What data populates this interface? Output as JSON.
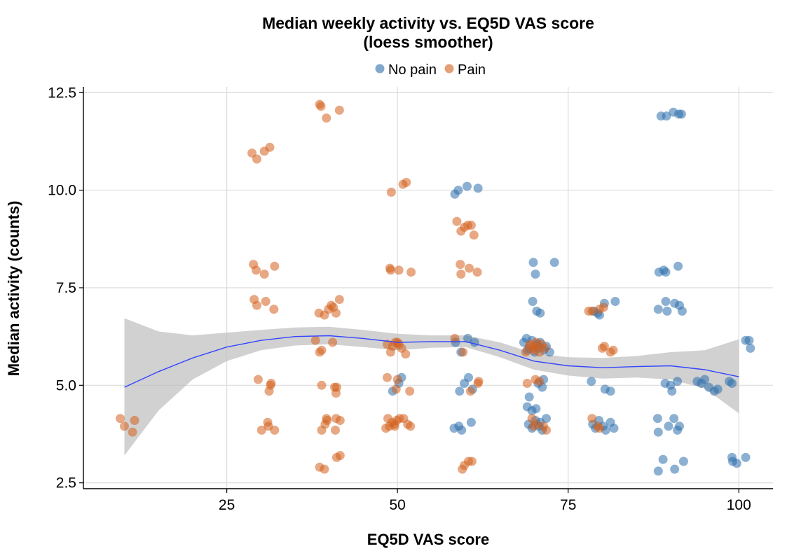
{
  "chart_data": {
    "type": "scatter",
    "title": "Median weekly activity vs. EQ5D VAS score",
    "subtitle": "(loess smoother)",
    "xlabel": "EQ5D VAS score",
    "ylabel": "Median activity (counts)",
    "xlim": [
      4,
      105
    ],
    "ylim": [
      2.35,
      12.65
    ],
    "x_ticks": [
      25,
      50,
      75,
      100
    ],
    "x_tick_labels": [
      "25",
      "50",
      "75",
      "100"
    ],
    "y_ticks": [
      2.5,
      5.0,
      7.5,
      10.0,
      12.5
    ],
    "y_tick_labels": [
      "2.5",
      "5.0",
      "7.5",
      "10.0",
      "12.5"
    ],
    "grid": true,
    "legend_position": "top",
    "colors": {
      "no_pain": "#2e6fac",
      "pain": "#d4601e",
      "smoother": "#3344ff",
      "band": "#bfbfbf"
    },
    "series": [
      {
        "name": "No pain",
        "points": [
          [
            58.4,
            9.9
          ],
          [
            58.9,
            10.0
          ],
          [
            60.2,
            10.1
          ],
          [
            61.8,
            10.05
          ],
          [
            58.5,
            6.1
          ],
          [
            59.3,
            5.85
          ],
          [
            60.3,
            6.2
          ],
          [
            61.3,
            6.1
          ],
          [
            59.8,
            5.05
          ],
          [
            60.4,
            5.2
          ],
          [
            59.1,
            4.85
          ],
          [
            61.0,
            4.9
          ],
          [
            58.3,
            3.9
          ],
          [
            59.0,
            3.95
          ],
          [
            59.4,
            3.85
          ],
          [
            60.8,
            4.05
          ],
          [
            49.3,
            4.85
          ],
          [
            50.2,
            5.05
          ],
          [
            50.6,
            5.2
          ],
          [
            69.9,
            8.15
          ],
          [
            70.2,
            7.85
          ],
          [
            73.0,
            8.15
          ],
          [
            69.8,
            7.15
          ],
          [
            70.4,
            6.9
          ],
          [
            70.9,
            6.85
          ],
          [
            68.5,
            6.1
          ],
          [
            68.9,
            6.2
          ],
          [
            69.3,
            5.95
          ],
          [
            69.7,
            6.15
          ],
          [
            70.1,
            5.85
          ],
          [
            70.5,
            6.05
          ],
          [
            70.9,
            6.1
          ],
          [
            71.4,
            5.9
          ],
          [
            71.8,
            6.0
          ],
          [
            72.3,
            5.85
          ],
          [
            69.0,
            5.9
          ],
          [
            70.6,
            5.95
          ],
          [
            70.6,
            5.05
          ],
          [
            71.2,
            4.95
          ],
          [
            71.4,
            5.15
          ],
          [
            69.3,
            4.7
          ],
          [
            69.0,
            4.45
          ],
          [
            69.7,
            4.35
          ],
          [
            70.3,
            4.4
          ],
          [
            69.2,
            4.0
          ],
          [
            69.7,
            3.9
          ],
          [
            70.2,
            4.1
          ],
          [
            70.7,
            3.95
          ],
          [
            71.2,
            3.85
          ],
          [
            71.8,
            4.15
          ],
          [
            70.9,
            4.05
          ],
          [
            78.6,
            4.0
          ],
          [
            79.0,
            3.9
          ],
          [
            79.5,
            4.1
          ],
          [
            80.1,
            3.95
          ],
          [
            80.5,
            3.85
          ],
          [
            81.2,
            4.05
          ],
          [
            81.7,
            3.9
          ],
          [
            78.4,
            5.1
          ],
          [
            80.4,
            4.9
          ],
          [
            81.2,
            4.85
          ],
          [
            78.8,
            6.9
          ],
          [
            79.3,
            6.85
          ],
          [
            79.6,
            6.8
          ],
          [
            80.3,
            7.1
          ],
          [
            81.9,
            7.15
          ],
          [
            88.6,
            11.9
          ],
          [
            89.4,
            11.9
          ],
          [
            90.4,
            12.0
          ],
          [
            91.2,
            11.95
          ],
          [
            91.6,
            11.95
          ],
          [
            88.3,
            7.9
          ],
          [
            89.0,
            7.95
          ],
          [
            89.3,
            7.9
          ],
          [
            91.1,
            8.05
          ],
          [
            88.2,
            6.95
          ],
          [
            89.3,
            7.15
          ],
          [
            89.5,
            6.9
          ],
          [
            90.6,
            7.1
          ],
          [
            91.3,
            7.05
          ],
          [
            91.7,
            6.9
          ],
          [
            89.2,
            5.05
          ],
          [
            90.0,
            5.0
          ],
          [
            90.2,
            4.85
          ],
          [
            91.0,
            5.1
          ],
          [
            93.9,
            5.1
          ],
          [
            94.5,
            5.05
          ],
          [
            95.0,
            5.15
          ],
          [
            95.6,
            4.95
          ],
          [
            96.4,
            4.85
          ],
          [
            96.9,
            4.9
          ],
          [
            98.6,
            5.1
          ],
          [
            99.0,
            5.05
          ],
          [
            88.1,
            4.15
          ],
          [
            88.2,
            3.8
          ],
          [
            89.7,
            3.95
          ],
          [
            90.5,
            4.15
          ],
          [
            91.0,
            3.85
          ],
          [
            91.3,
            3.95
          ],
          [
            88.2,
            2.8
          ],
          [
            88.9,
            3.1
          ],
          [
            90.6,
            2.85
          ],
          [
            91.9,
            3.05
          ],
          [
            99.0,
            3.15
          ],
          [
            99.1,
            3.05
          ],
          [
            99.7,
            3.0
          ],
          [
            101.0,
            3.15
          ],
          [
            101.0,
            6.15
          ],
          [
            101.5,
            6.15
          ],
          [
            101.7,
            5.95
          ]
        ]
      },
      {
        "name": "Pain",
        "points": [
          [
            9.4,
            4.15
          ],
          [
            10.0,
            3.95
          ],
          [
            11.2,
            3.8
          ],
          [
            11.5,
            4.1
          ],
          [
            28.7,
            10.95
          ],
          [
            29.4,
            10.8
          ],
          [
            30.5,
            11.0
          ],
          [
            31.3,
            11.1
          ],
          [
            28.9,
            8.1
          ],
          [
            29.3,
            7.95
          ],
          [
            30.5,
            7.85
          ],
          [
            32.0,
            8.05
          ],
          [
            29.0,
            7.2
          ],
          [
            29.4,
            7.05
          ],
          [
            30.7,
            7.15
          ],
          [
            31.9,
            6.95
          ],
          [
            29.6,
            5.15
          ],
          [
            31.2,
            4.85
          ],
          [
            31.4,
            5.0
          ],
          [
            31.5,
            5.05
          ],
          [
            30.1,
            3.85
          ],
          [
            31.0,
            4.05
          ],
          [
            31.1,
            3.95
          ],
          [
            32.0,
            3.85
          ],
          [
            38.6,
            12.2
          ],
          [
            38.8,
            12.15
          ],
          [
            39.6,
            11.85
          ],
          [
            41.5,
            12.05
          ],
          [
            38.0,
            6.15
          ],
          [
            38.6,
            5.85
          ],
          [
            38.9,
            5.9
          ],
          [
            40.5,
            6.1
          ],
          [
            38.5,
            6.85
          ],
          [
            39.3,
            6.8
          ],
          [
            39.9,
            6.95
          ],
          [
            40.3,
            7.05
          ],
          [
            41.0,
            6.85
          ],
          [
            41.5,
            7.2
          ],
          [
            40.6,
            7.0
          ],
          [
            38.9,
            5.0
          ],
          [
            40.8,
            4.95
          ],
          [
            41.0,
            4.8
          ],
          [
            41.1,
            4.95
          ],
          [
            38.9,
            3.85
          ],
          [
            39.4,
            4.0
          ],
          [
            39.6,
            4.15
          ],
          [
            39.7,
            4.1
          ],
          [
            40.9,
            3.85
          ],
          [
            41.0,
            4.15
          ],
          [
            41.6,
            4.1
          ],
          [
            38.6,
            2.9
          ],
          [
            39.3,
            2.85
          ],
          [
            41.1,
            3.15
          ],
          [
            41.6,
            3.2
          ],
          [
            49.1,
            9.95
          ],
          [
            50.8,
            10.15
          ],
          [
            51.3,
            10.2
          ],
          [
            48.9,
            8.0
          ],
          [
            49.0,
            7.95
          ],
          [
            50.2,
            7.95
          ],
          [
            52.0,
            7.9
          ],
          [
            48.5,
            6.05
          ],
          [
            49.0,
            5.85
          ],
          [
            49.7,
            6.1
          ],
          [
            50.2,
            6.05
          ],
          [
            50.6,
            5.95
          ],
          [
            51.2,
            5.8
          ],
          [
            50.0,
            6.1
          ],
          [
            49.3,
            6.0
          ],
          [
            48.5,
            5.2
          ],
          [
            49.8,
            4.9
          ],
          [
            50.0,
            5.15
          ],
          [
            51.8,
            4.85
          ],
          [
            48.3,
            3.9
          ],
          [
            48.8,
            3.95
          ],
          [
            49.2,
            4.05
          ],
          [
            49.5,
            4.0
          ],
          [
            49.9,
            4.1
          ],
          [
            50.3,
            4.15
          ],
          [
            50.9,
            4.15
          ],
          [
            51.5,
            4.0
          ],
          [
            51.9,
            3.95
          ],
          [
            48.6,
            4.15
          ],
          [
            49.6,
            3.95
          ],
          [
            58.7,
            9.2
          ],
          [
            59.3,
            8.95
          ],
          [
            59.8,
            9.05
          ],
          [
            60.3,
            9.1
          ],
          [
            60.8,
            9.1
          ],
          [
            61.2,
            8.85
          ],
          [
            59.2,
            8.1
          ],
          [
            59.3,
            7.85
          ],
          [
            60.5,
            8.0
          ],
          [
            61.7,
            7.9
          ],
          [
            58.4,
            6.2
          ],
          [
            59.6,
            5.85
          ],
          [
            60.7,
            4.85
          ],
          [
            61.8,
            5.05
          ],
          [
            61.9,
            5.1
          ],
          [
            59.5,
            2.85
          ],
          [
            59.8,
            2.95
          ],
          [
            60.4,
            3.05
          ],
          [
            60.9,
            3.05
          ],
          [
            68.8,
            5.85
          ],
          [
            69.5,
            6.05
          ],
          [
            69.9,
            5.95
          ],
          [
            70.3,
            6.1
          ],
          [
            70.6,
            6.0
          ],
          [
            70.8,
            5.85
          ],
          [
            71.1,
            6.05
          ],
          [
            71.6,
            5.95
          ],
          [
            70.0,
            5.9
          ],
          [
            69.3,
            6.0
          ],
          [
            69.0,
            5.05
          ],
          [
            70.2,
            5.15
          ],
          [
            70.8,
            5.1
          ],
          [
            69.7,
            4.15
          ],
          [
            69.9,
            3.95
          ],
          [
            70.4,
            4.0
          ],
          [
            71.4,
            3.95
          ],
          [
            71.8,
            3.85
          ],
          [
            78.0,
            6.9
          ],
          [
            78.5,
            6.9
          ],
          [
            79.6,
            6.95
          ],
          [
            80.2,
            7.0
          ],
          [
            80.0,
            5.95
          ],
          [
            80.3,
            6.0
          ],
          [
            81.2,
            5.85
          ],
          [
            81.6,
            5.9
          ],
          [
            78.5,
            4.15
          ],
          [
            79.3,
            3.95
          ],
          [
            79.6,
            3.9
          ]
        ]
      }
    ],
    "smoother": {
      "x": [
        10,
        15,
        20,
        25,
        30,
        35,
        40,
        45,
        50,
        55,
        60,
        65,
        70,
        75,
        80,
        85,
        90,
        95,
        100
      ],
      "y": [
        4.95,
        5.35,
        5.7,
        5.98,
        6.15,
        6.25,
        6.27,
        6.2,
        6.1,
        6.12,
        6.12,
        5.9,
        5.62,
        5.5,
        5.45,
        5.48,
        5.5,
        5.4,
        5.22
      ],
      "lower": [
        3.2,
        4.35,
        5.15,
        5.62,
        5.9,
        6.02,
        6.05,
        5.98,
        5.9,
        5.96,
        5.98,
        5.72,
        5.4,
        5.25,
        5.17,
        5.2,
        5.15,
        4.92,
        4.28
      ],
      "upper": [
        6.72,
        6.38,
        6.28,
        6.35,
        6.42,
        6.48,
        6.5,
        6.42,
        6.32,
        6.28,
        6.28,
        6.1,
        5.82,
        5.72,
        5.7,
        5.75,
        5.85,
        5.9,
        6.18
      ]
    }
  }
}
